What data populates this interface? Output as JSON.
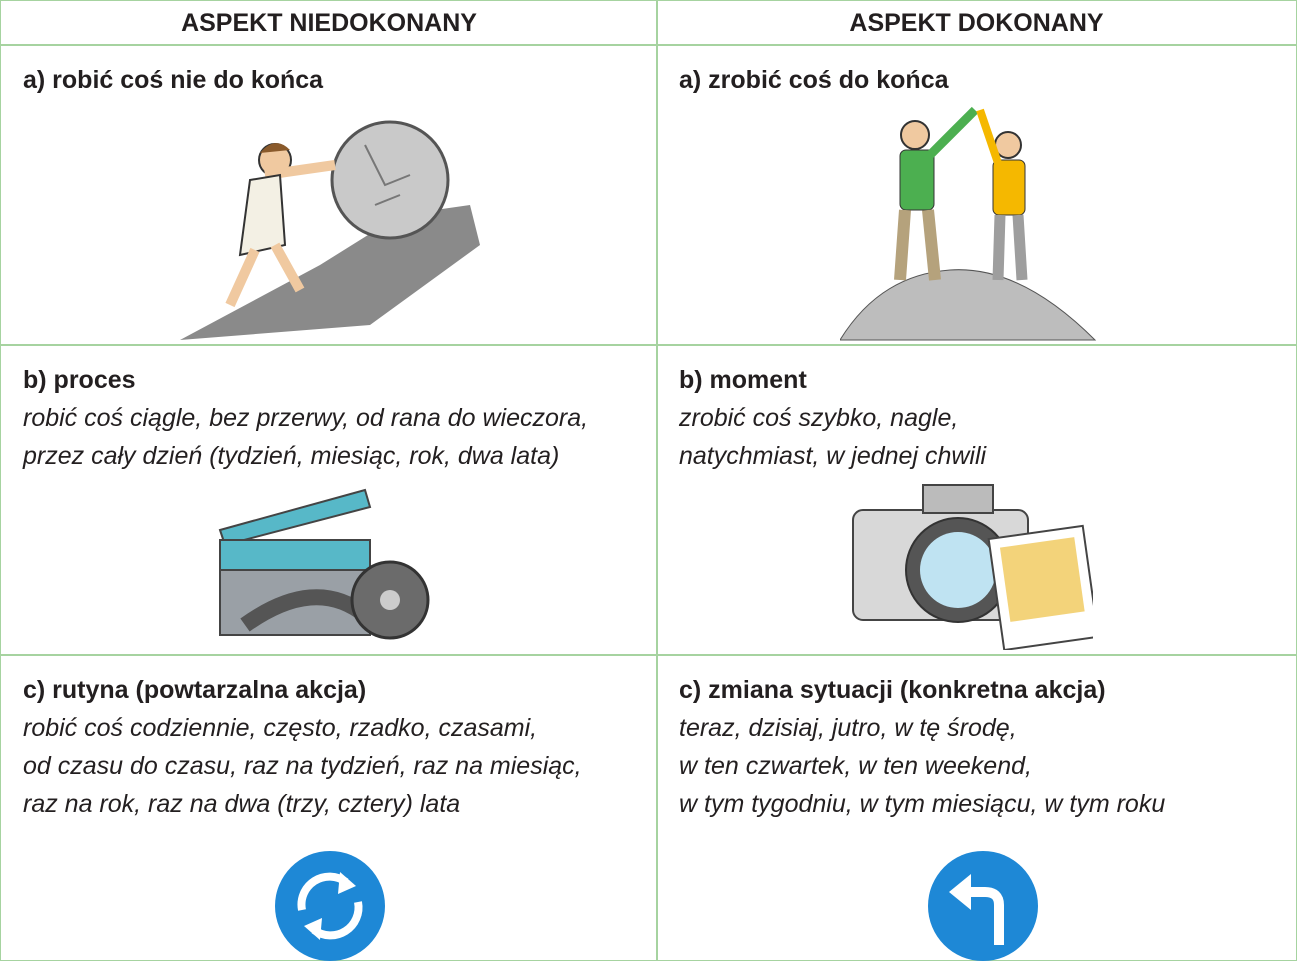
{
  "table": {
    "headers": [
      "ASPEKT NIEDOKONANY",
      "ASPEKT DOKONANY"
    ],
    "rows": [
      [
        {
          "title": "a) robić coś nie do końca",
          "lines": []
        },
        {
          "title": "a) zrobić coś do końca",
          "lines": []
        }
      ],
      [
        {
          "title": "b) proces",
          "lines": [
            "robić coś ciągle, bez przerwy, od rana do wieczora,",
            "przez cały dzień (tydzień, miesiąc, rok, dwa lata)"
          ]
        },
        {
          "title": "b) moment",
          "lines": [
            "zrobić coś szybko, nagle,",
            "natychmiast, w jednej chwili"
          ]
        }
      ],
      [
        {
          "title": "c) rutyna (powtarzalna akcja)",
          "lines": [
            "robić coś codziennie, często, rzadko, czasami,",
            "od czasu do czasu, raz na tydzień, raz na miesiąc,",
            "raz na rok, raz na dwa (trzy, cztery) lata"
          ]
        },
        {
          "title": "c) zmiana sytuacji (konkretna akcja)",
          "lines": [
            "teraz, dzisiaj, jutro, w tę środę,",
            "w ten czwartek, w ten weekend,",
            "w tym tygodniu, w tym miesiącu, w tym roku"
          ]
        }
      ]
    ]
  }
}
